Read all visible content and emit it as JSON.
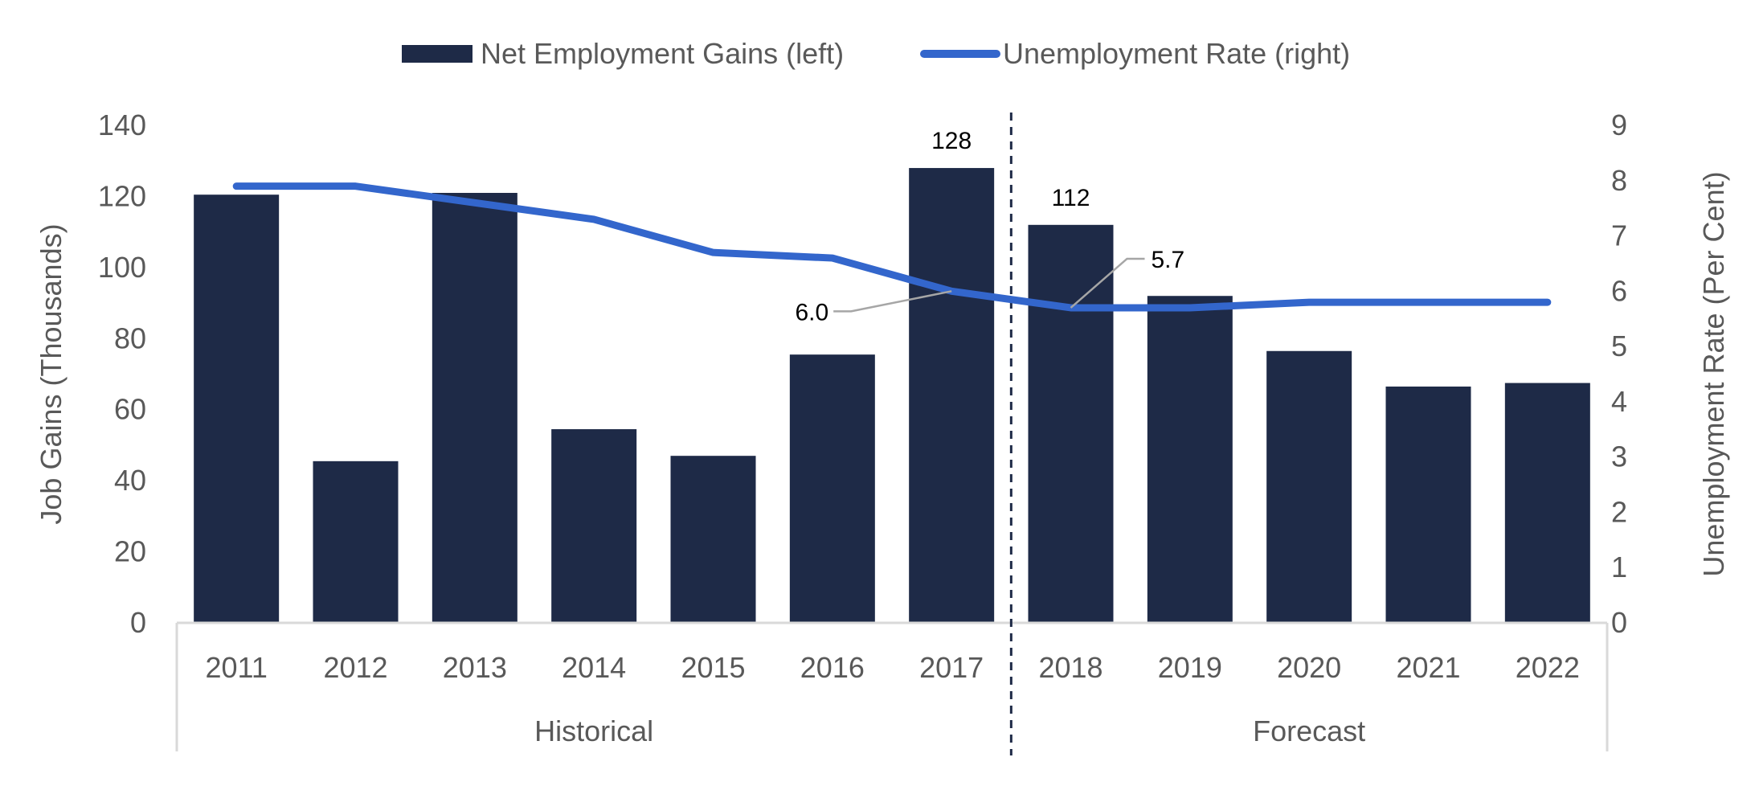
{
  "chart_data": {
    "type": "bar",
    "categories": [
      "2011",
      "2012",
      "2013",
      "2014",
      "2015",
      "2016",
      "2017",
      "2018",
      "2019",
      "2020",
      "2021",
      "2022"
    ],
    "groups": [
      {
        "label": "Historical",
        "from": "2011",
        "to": "2017"
      },
      {
        "label": "Forecast",
        "from": "2018",
        "to": "2022"
      }
    ],
    "series": [
      {
        "name": "Net Employment Gains (left)",
        "type": "bar",
        "axis": "left",
        "color": "#1e2a47",
        "values": [
          120.5,
          45.5,
          121,
          54.5,
          47,
          75.5,
          128,
          112,
          92,
          76.5,
          66.5,
          67.5
        ],
        "data_labels": {
          "2017": "128",
          "2018": "112"
        }
      },
      {
        "name": "Unemployment Rate (right)",
        "type": "line",
        "axis": "right",
        "color": "#3366cc",
        "values": [
          7.9,
          7.9,
          7.6,
          7.3,
          6.7,
          6.6,
          6.0,
          5.7,
          5.7,
          5.8,
          5.8,
          5.8
        ],
        "data_labels": {
          "2017": "6.0",
          "2018": "5.7"
        }
      }
    ],
    "ylabel": "Job Gains (Thousands)",
    "y2label": "Unemployment Rate (Per Cent)",
    "ylim": [
      0,
      140
    ],
    "yticks": [
      "0",
      "20",
      "40",
      "60",
      "80",
      "100",
      "120",
      "140"
    ],
    "y2lim": [
      0,
      9
    ],
    "y2ticks": [
      "0",
      "1",
      "2",
      "3",
      "4",
      "5",
      "6",
      "7",
      "8",
      "9"
    ],
    "divider_between": [
      "2017",
      "2018"
    ],
    "grid": false,
    "legend_position": "top-center"
  }
}
